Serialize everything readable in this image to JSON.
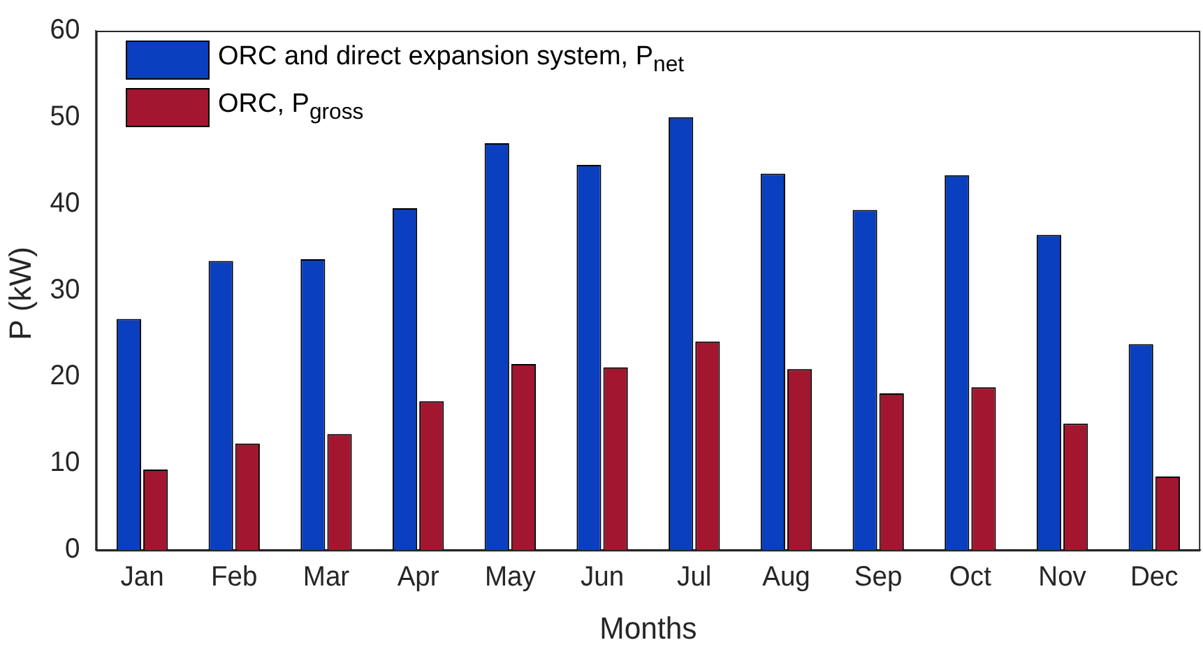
{
  "chart_data": {
    "type": "bar",
    "xlabel": "Months",
    "ylabel": "P (kW)",
    "categories": [
      "Jan",
      "Feb",
      "Mar",
      "Apr",
      "May",
      "Jun",
      "Jul",
      "Aug",
      "Sep",
      "Oct",
      "Nov",
      "Dec"
    ],
    "series": [
      {
        "name": "ORC and direct expansion system, P$_{net}$",
        "color": "#0a3fbf",
        "values": [
          26.7,
          33.4,
          33.6,
          39.5,
          47,
          44.5,
          50,
          43.5,
          39.3,
          43.3,
          36.4,
          23.8
        ]
      },
      {
        "name": "ORC, P$_{gross}$",
        "color": "#a3162f",
        "values": [
          9.3,
          12.3,
          13.4,
          17.2,
          21.5,
          21.1,
          24.1,
          20.9,
          18.1,
          18.8,
          14.6,
          8.5
        ]
      }
    ],
    "ylim": [
      0,
      60
    ],
    "yticks": [
      0,
      10,
      20,
      30,
      40,
      50,
      60
    ],
    "grid": false,
    "legend": "top left"
  }
}
